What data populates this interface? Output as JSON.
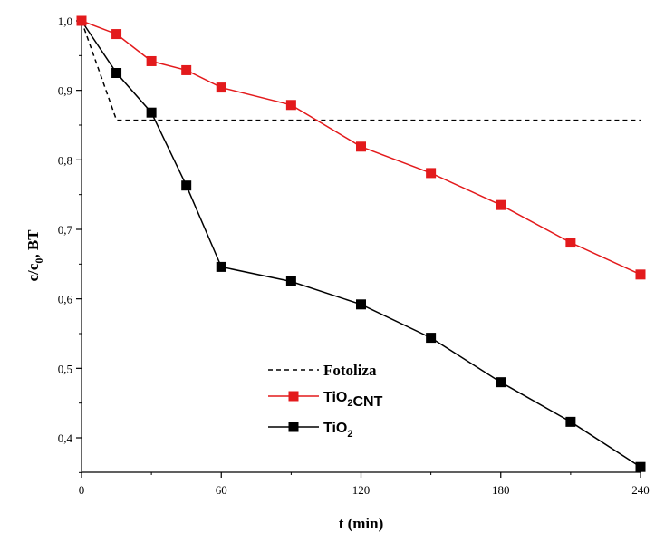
{
  "chart_data": {
    "type": "line",
    "xlabel": "t (min)",
    "ylabel": {
      "base": "c/c",
      "sub": "0",
      "rest": ", BT"
    },
    "xlim": [
      0,
      240
    ],
    "ylim": [
      0.35,
      1.0
    ],
    "xticks": [
      0,
      60,
      120,
      180,
      240
    ],
    "xtick_labels": [
      "0",
      "60",
      "120",
      "180",
      "240"
    ],
    "yticks": [
      0.4,
      0.5,
      0.6,
      0.7,
      0.8,
      0.9,
      1.0
    ],
    "ytick_labels": [
      "0,4",
      "0,5",
      "0,6",
      "0,7",
      "0,8",
      "0,9",
      "1,0"
    ],
    "grid": false,
    "legend_position": "lower-center",
    "series": [
      {
        "key": "fotoliza",
        "name": "Fotoliza",
        "label_parts": [
          [
            "Fotoliza",
            ""
          ]
        ],
        "color": "#000000",
        "style": "dashed",
        "marker": "none",
        "x": [
          0,
          15,
          240
        ],
        "y": [
          1.0,
          0.857,
          0.857
        ]
      },
      {
        "key": "tio2cnt",
        "name": "TiO2CNT",
        "label_parts": [
          [
            "TiO",
            ""
          ],
          [
            "2",
            "sub"
          ],
          [
            "CNT",
            ""
          ]
        ],
        "color": "#e31a1c",
        "style": "solid",
        "marker": "square",
        "x": [
          0,
          15,
          30,
          45,
          60,
          90,
          120,
          150,
          180,
          210,
          240
        ],
        "y": [
          1.0,
          0.981,
          0.942,
          0.929,
          0.904,
          0.879,
          0.819,
          0.781,
          0.735,
          0.681,
          0.635
        ]
      },
      {
        "key": "tio2",
        "name": "TiO2",
        "label_parts": [
          [
            "TiO",
            ""
          ],
          [
            "2",
            "sub"
          ]
        ],
        "color": "#000000",
        "style": "solid",
        "marker": "square",
        "x": [
          0,
          15,
          30,
          45,
          60,
          90,
          120,
          150,
          180,
          210,
          240
        ],
        "y": [
          1.0,
          0.925,
          0.868,
          0.763,
          0.646,
          0.625,
          0.592,
          0.544,
          0.48,
          0.423,
          0.358
        ]
      }
    ]
  }
}
